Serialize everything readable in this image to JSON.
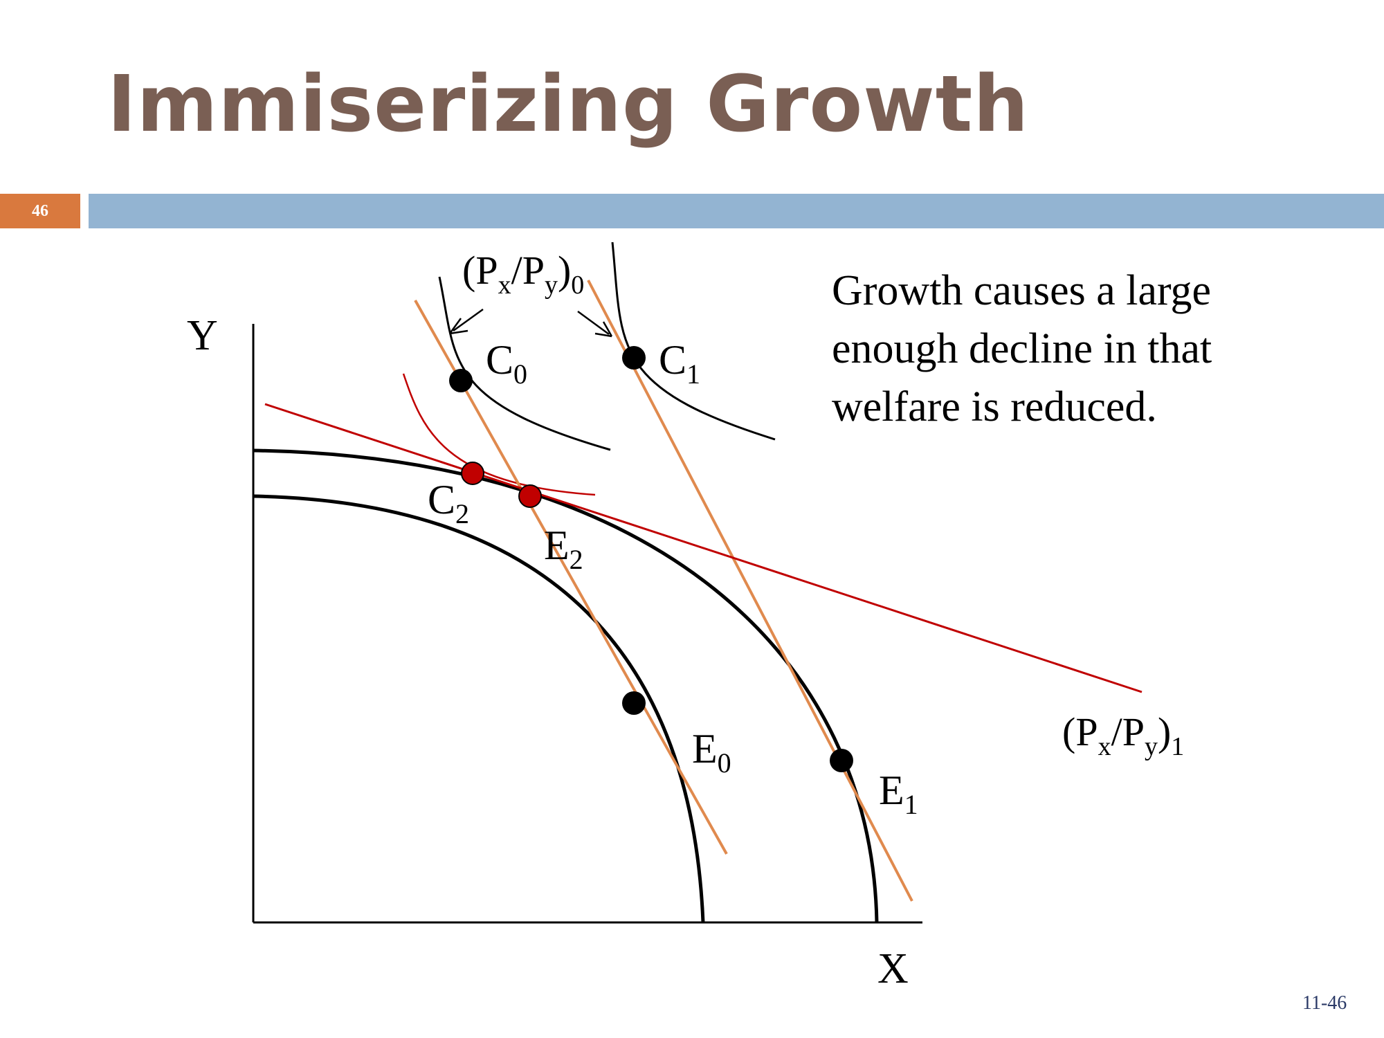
{
  "slide": {
    "title": "Immiserizing Growth",
    "number": "46",
    "footer": "11-46",
    "note": "Growth causes a large enough decline in that welfare is reduced."
  },
  "diagram": {
    "axes": {
      "y": "Y",
      "x": "X"
    },
    "price_labels": {
      "initial": {
        "base": "(P",
        "sub1": "x",
        "mid": "/P",
        "sub2": "y",
        "close": ")",
        "sub3": "0"
      },
      "final": {
        "base": "(P",
        "sub1": "x",
        "mid": "/P",
        "sub2": "y",
        "close": ")",
        "sub3": "1"
      }
    },
    "points": {
      "C0": {
        "base": "C",
        "sub": "0"
      },
      "C1": {
        "base": "C",
        "sub": "1"
      },
      "C2": {
        "base": "C",
        "sub": "2"
      },
      "E0": {
        "base": "E",
        "sub": "0"
      },
      "E1": {
        "base": "E",
        "sub": "1"
      },
      "E2": {
        "base": "E",
        "sub": "2"
      }
    },
    "colors": {
      "curve": "#000000",
      "price_line_initial": "#e08a4e",
      "price_line_final": "#c00000",
      "point_black": "#000000",
      "point_red": "#c00000",
      "title": "#7a5f54",
      "number_box": "#d9793e",
      "rule_bar": "#93b4d2"
    }
  }
}
